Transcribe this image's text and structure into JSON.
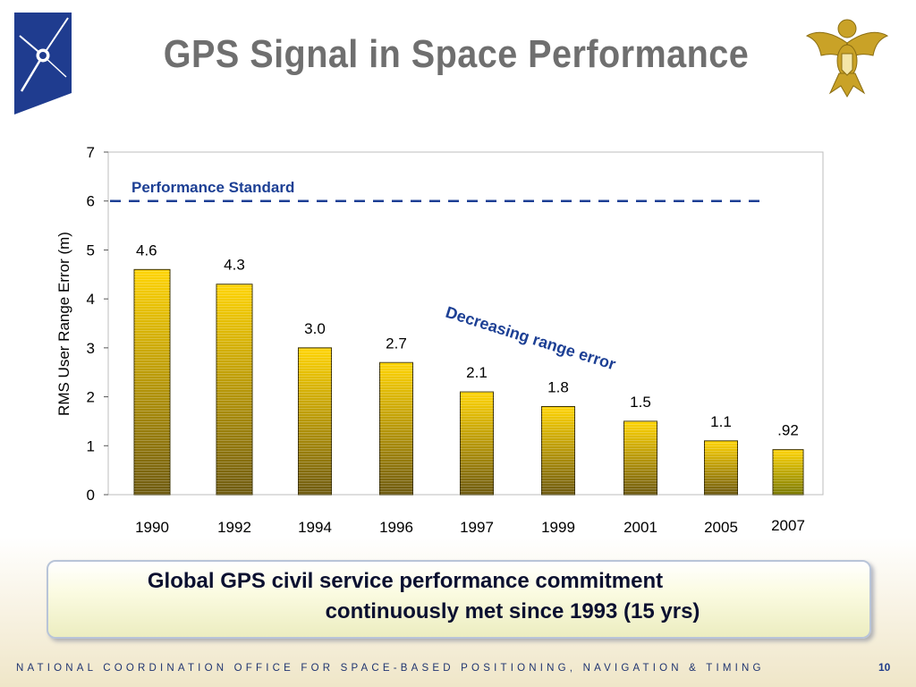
{
  "slide": {
    "title": "GPS Signal in Space Performance",
    "callout_line1": "Global GPS civil service performance commitment",
    "callout_line2": "continuously met since 1993 (15 yrs)",
    "footer": "NATIONAL COORDINATION OFFICE FOR SPACE-BASED POSITIONING, NAVIGATION & TIMING",
    "page_number": "10"
  },
  "colors": {
    "title": "#6f6f6f",
    "bar_top": "#ffd400",
    "bar_bottom": "#6e5a10",
    "last_bar_top": "#ffd400",
    "last_bar_bottom": "#7a7a00",
    "standard_line": "#1c3f94",
    "annotation": "#1c3f94",
    "logo_blue": "#1f3c8f",
    "seal_gold": "#c9a227"
  },
  "chart_data": {
    "type": "bar",
    "categories": [
      "1990",
      "1992",
      "1994",
      "1996",
      "1997",
      "1999",
      "2001",
      "2005",
      "2007"
    ],
    "values": [
      4.6,
      4.3,
      3.0,
      2.7,
      2.1,
      1.8,
      1.5,
      1.1,
      0.92
    ],
    "data_labels": [
      "4.6",
      "4.3",
      "3.0",
      "2.7",
      "2.1",
      "1.8",
      "1.5",
      "1.1",
      ".92"
    ],
    "ylabel": "RMS User Range Error (m)",
    "xlabel": "",
    "ylim": [
      0,
      7
    ],
    "yticks": [
      0,
      1,
      2,
      3,
      4,
      5,
      6,
      7
    ],
    "grid": false,
    "reference_line": {
      "label": "Performance Standard",
      "value": 6,
      "style": "dashed"
    },
    "annotations": [
      {
        "text": "Decreasing range error"
      }
    ]
  }
}
